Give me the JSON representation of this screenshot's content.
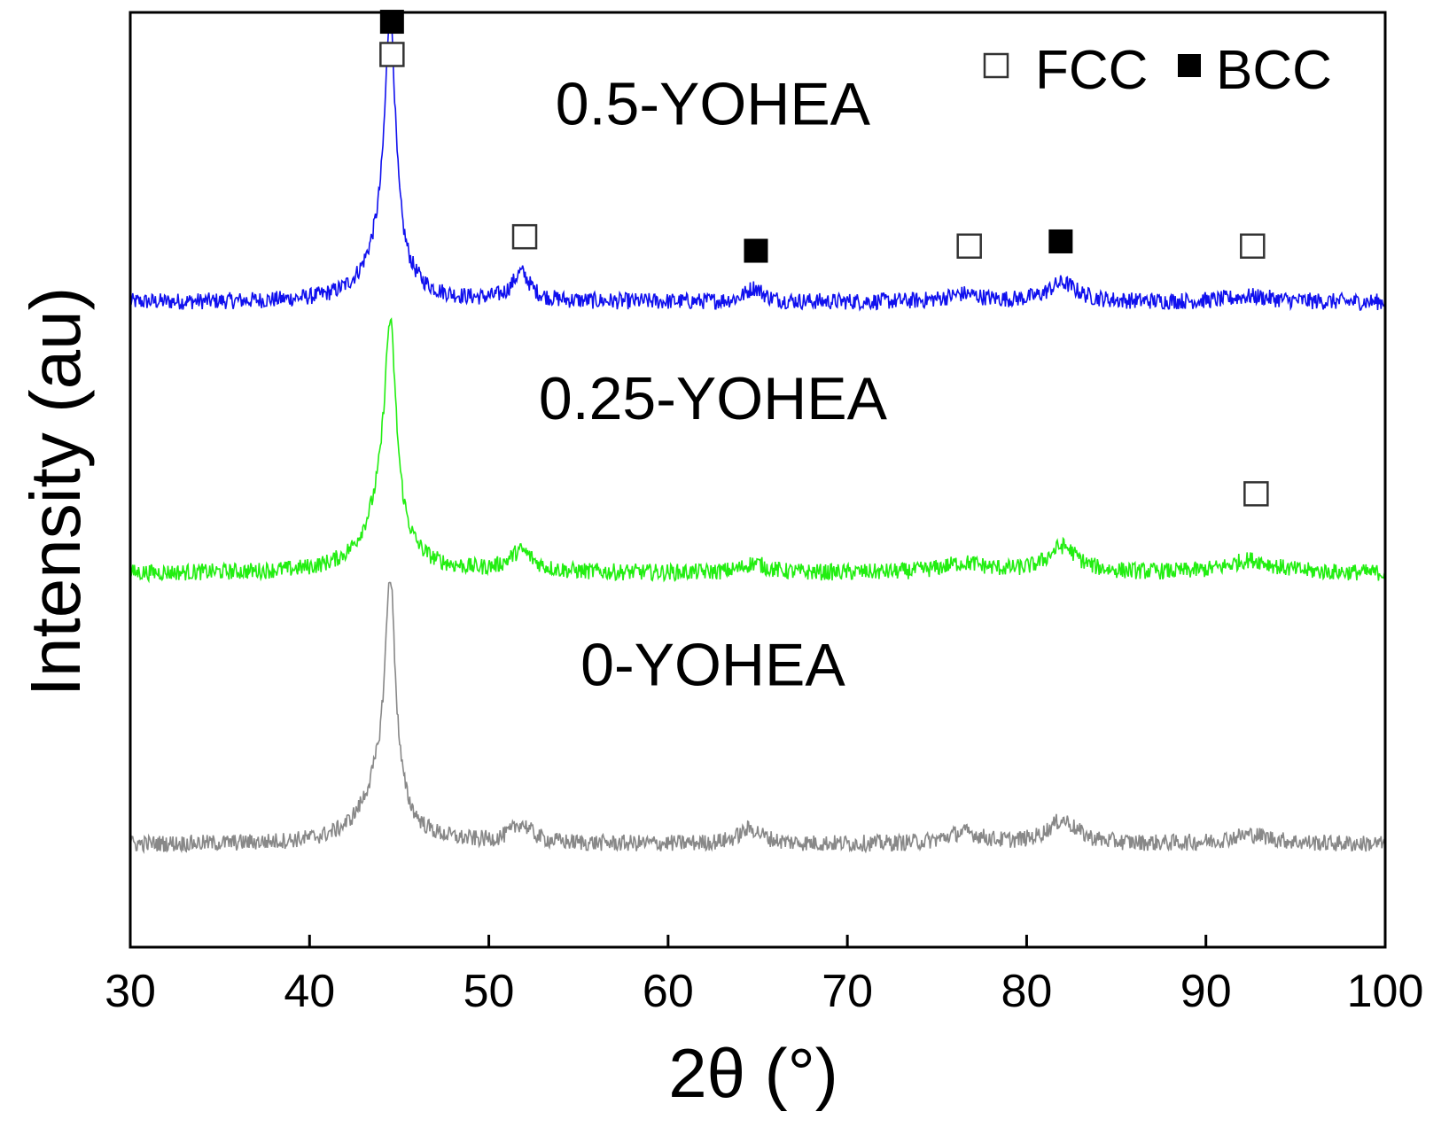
{
  "chart_data": {
    "type": "line",
    "title": "",
    "xlabel": "2θ (°)",
    "ylabel": "Intensity (au)",
    "xlim": [
      30,
      100
    ],
    "ylim": [
      0,
      10
    ],
    "xticks": [
      30,
      40,
      50,
      60,
      70,
      80,
      90,
      100
    ],
    "xtick_labels": [
      "30",
      "40",
      "50",
      "60",
      "70",
      "80",
      "90",
      "100"
    ],
    "y_ticks_shown": false,
    "legend": {
      "position": "top-right",
      "entries": [
        {
          "label": "FCC",
          "marker": "open-square"
        },
        {
          "label": "BCC",
          "marker": "filled-square"
        }
      ]
    },
    "series": [
      {
        "name": "0.5-YOHEA",
        "color": "#1010ee",
        "baseline": 6.9,
        "noise": 0.09,
        "label_at": [
          62.5,
          8.8
        ],
        "peaks": [
          {
            "pos": 44.5,
            "height": 2.55,
            "width": 0.35
          },
          {
            "pos": 44.2,
            "height": 0.6,
            "width": 1.2
          },
          {
            "pos": 51.8,
            "height": 0.3,
            "width": 0.6
          },
          {
            "pos": 64.8,
            "height": 0.15,
            "width": 0.6
          },
          {
            "pos": 76.5,
            "height": 0.08,
            "width": 1.2
          },
          {
            "pos": 82.0,
            "height": 0.2,
            "width": 1.0
          },
          {
            "pos": 92.5,
            "height": 0.06,
            "width": 1.5
          }
        ]
      },
      {
        "name": "0.25-YOHEA",
        "color": "#22ee11",
        "baseline": 4.0,
        "noise": 0.09,
        "label_at": [
          62.5,
          5.65
        ],
        "peaks": [
          {
            "pos": 44.5,
            "height": 2.15,
            "width": 0.4
          },
          {
            "pos": 44.1,
            "height": 0.6,
            "width": 1.3
          },
          {
            "pos": 51.8,
            "height": 0.22,
            "width": 0.8
          },
          {
            "pos": 64.8,
            "height": 0.1,
            "width": 0.8
          },
          {
            "pos": 76.5,
            "height": 0.1,
            "width": 1.5
          },
          {
            "pos": 82.0,
            "height": 0.28,
            "width": 1.0
          },
          {
            "pos": 92.5,
            "height": 0.14,
            "width": 1.5
          }
        ]
      },
      {
        "name": "0-YOHEA",
        "color": "#888888",
        "baseline": 1.1,
        "noise": 0.09,
        "label_at": [
          62.5,
          2.8
        ],
        "peaks": [
          {
            "pos": 44.5,
            "height": 2.35,
            "width": 0.35
          },
          {
            "pos": 44.0,
            "height": 0.6,
            "width": 1.3
          },
          {
            "pos": 51.8,
            "height": 0.2,
            "width": 0.7
          },
          {
            "pos": 64.6,
            "height": 0.16,
            "width": 0.8
          },
          {
            "pos": 76.5,
            "height": 0.12,
            "width": 1.2
          },
          {
            "pos": 82.0,
            "height": 0.25,
            "width": 1.0
          },
          {
            "pos": 92.5,
            "height": 0.1,
            "width": 1.5
          }
        ]
      }
    ],
    "phase_markers": [
      {
        "x": 44.6,
        "y": 9.9,
        "phase": "BCC"
      },
      {
        "x": 44.6,
        "y": 9.55,
        "phase": "FCC"
      },
      {
        "x": 52.0,
        "y": 7.6,
        "phase": "FCC"
      },
      {
        "x": 64.9,
        "y": 7.45,
        "phase": "BCC"
      },
      {
        "x": 76.8,
        "y": 7.5,
        "phase": "FCC"
      },
      {
        "x": 81.9,
        "y": 7.55,
        "phase": "BCC"
      },
      {
        "x": 92.6,
        "y": 7.5,
        "phase": "FCC"
      },
      {
        "x": 92.8,
        "y": 4.85,
        "phase": "FCC"
      }
    ]
  }
}
